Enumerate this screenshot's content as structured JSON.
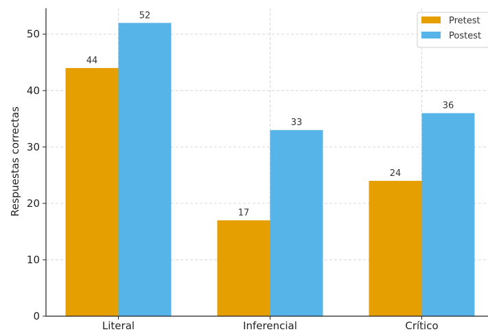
{
  "chart_data": {
    "type": "bar",
    "categories": [
      "Literal",
      "Inferencial",
      "Crítico"
    ],
    "series": [
      {
        "name": "Pretest",
        "values": [
          44,
          17,
          24
        ],
        "color": "#E69F00"
      },
      {
        "name": "Postest",
        "values": [
          52,
          33,
          36
        ],
        "color": "#56B4E9"
      }
    ],
    "title": "",
    "xlabel": "",
    "ylabel": "Respuestas correctas",
    "ylim": [
      0,
      54.6
    ],
    "yticks": [
      0,
      10,
      20,
      30,
      40,
      50
    ],
    "grid": true,
    "legend_position": "top-right",
    "grid_color": "#cccccc",
    "axis_color": "#222222"
  }
}
